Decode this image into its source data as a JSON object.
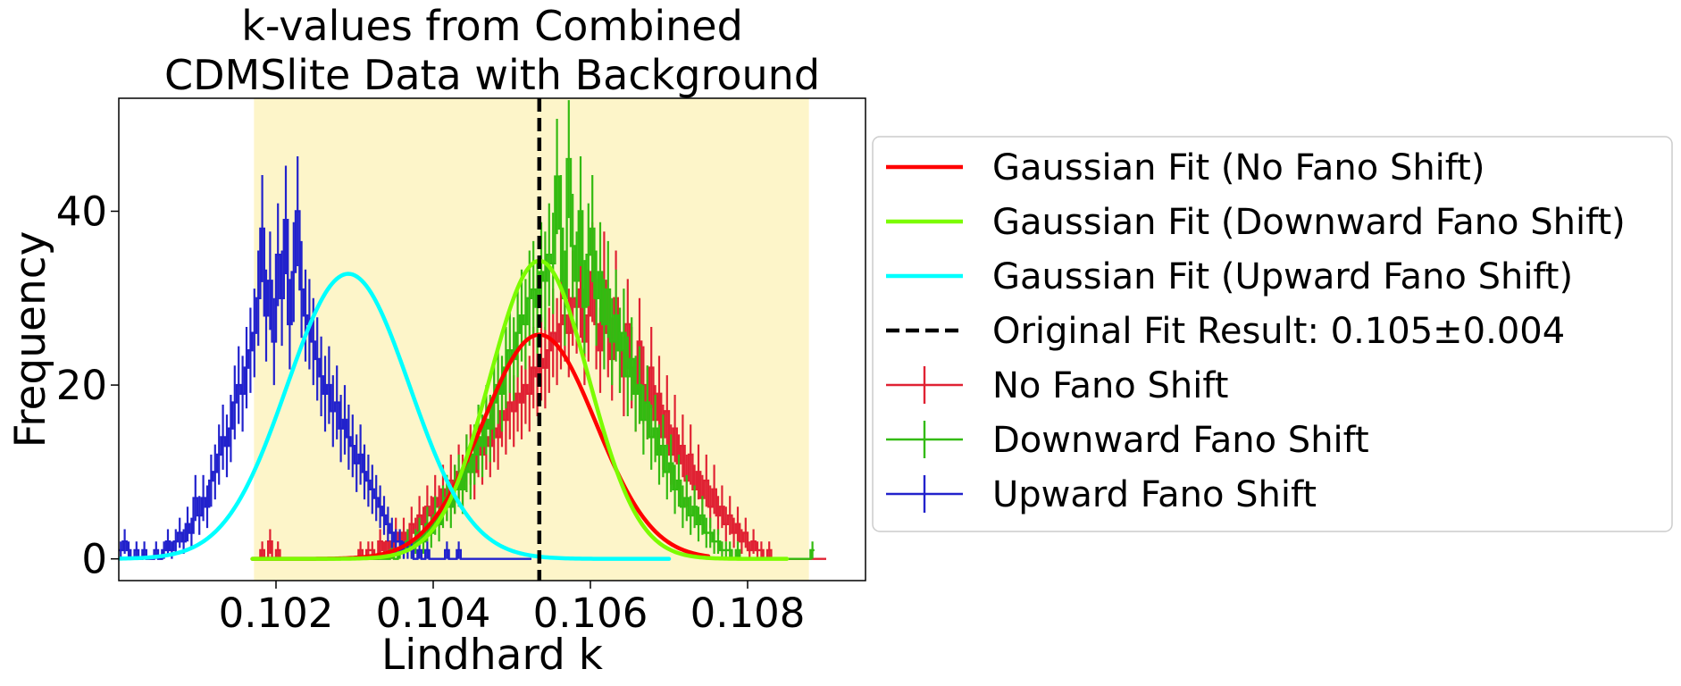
{
  "chart_data": {
    "type": "histogram",
    "title_lines": [
      "k-values from Combined",
      "CDMSlite Data with Background"
    ],
    "xlabel": "Lindhard k",
    "ylabel": "Frequency",
    "xlim": [
      0.1,
      0.1095
    ],
    "ylim": [
      -2.5,
      53
    ],
    "xticks": [
      0.102,
      0.104,
      0.106,
      0.108
    ],
    "xtick_labels": [
      "0.102",
      "0.104",
      "0.106",
      "0.108"
    ],
    "yticks": [
      0,
      20,
      40
    ],
    "ytick_labels": [
      "0",
      "20",
      "40"
    ],
    "grid": false,
    "shaded_band": {
      "x0": 0.10172,
      "x1": 0.10878,
      "color": "#fdf5c9"
    },
    "vline": {
      "x": 0.10535,
      "label": "Original Fit Result: 0.105±0.004",
      "style": "dashed",
      "color": "#000000"
    },
    "legend_placement": "right-outside",
    "legend": [
      {
        "label": "Gaussian Fit (No Fano Shift)",
        "type": "line",
        "color": "#ff0000"
      },
      {
        "label": "Gaussian Fit (Downward Fano Shift)",
        "type": "line",
        "color": "#7cfc00"
      },
      {
        "label": "Gaussian Fit (Upward Fano Shift)",
        "type": "line",
        "color": "#00ffff"
      },
      {
        "label": "Original Fit Result: 0.105±0.004",
        "type": "dashed",
        "color": "#000000"
      },
      {
        "label": "No Fano Shift",
        "type": "errorbar",
        "color": "#e02233"
      },
      {
        "label": "Downward Fano Shift",
        "type": "errorbar",
        "color": "#33bb11"
      },
      {
        "label": "Upward Fano Shift",
        "type": "errorbar",
        "color": "#2222cc"
      }
    ],
    "gaussian_fits": [
      {
        "name": "Gaussian Fit (No Fano Shift)",
        "color": "#ff0000",
        "amplitude": 25.8,
        "mean": 0.10535,
        "sigma": 0.00072,
        "x_range": [
          0.1017,
          0.1075
        ]
      },
      {
        "name": "Gaussian Fit (Downward Fano Shift)",
        "color": "#7cfc00",
        "amplitude": 34.3,
        "mean": 0.10535,
        "sigma": 0.00063,
        "x_range": [
          0.1017,
          0.1085
        ]
      },
      {
        "name": "Gaussian Fit (Upward Fano Shift)",
        "color": "#00ffff",
        "amplitude": 32.8,
        "mean": 0.10292,
        "sigma": 0.00078,
        "x_range": [
          0.1,
          0.107
        ]
      }
    ],
    "histograms": [
      {
        "name": "No Fano Shift",
        "color": "#e02233",
        "x_start": 0.1017,
        "bin_width": 5e-05,
        "counts": [
          0,
          0,
          1,
          0,
          2,
          0,
          1,
          0,
          0,
          0,
          0,
          0,
          0,
          0,
          0,
          0,
          0,
          0,
          0,
          0,
          0,
          0,
          0,
          0,
          0,
          0,
          0,
          1,
          0,
          1,
          1,
          0,
          2,
          1,
          2,
          1,
          3,
          2,
          3,
          2,
          4,
          3,
          5,
          4,
          6,
          5,
          7,
          6,
          8,
          7,
          9,
          8,
          10,
          9,
          11,
          12,
          10,
          13,
          12,
          14,
          13,
          15,
          14,
          17,
          16,
          18,
          17,
          19,
          18,
          20,
          19,
          22,
          21,
          23,
          22,
          24,
          26,
          25,
          27,
          28,
          26,
          30,
          29,
          31,
          25,
          28,
          33,
          27,
          24,
          32,
          26,
          23,
          30,
          24,
          21,
          27,
          22,
          19,
          25,
          20,
          18,
          22,
          16,
          19,
          14,
          17,
          12,
          15,
          11,
          13,
          9,
          12,
          8,
          10,
          7,
          9,
          6,
          8,
          5,
          6,
          4,
          5,
          3,
          4,
          2,
          3,
          1,
          2,
          1,
          1,
          0,
          1,
          0,
          0,
          0,
          0,
          0,
          0,
          0,
          0,
          0,
          0,
          0,
          0,
          0,
          0
        ]
      },
      {
        "name": "Downward Fano Shift",
        "color": "#33bb11",
        "x_start": 0.1017,
        "bin_width": 5e-05,
        "counts": [
          0,
          0,
          0,
          0,
          0,
          0,
          0,
          0,
          0,
          0,
          0,
          0,
          0,
          0,
          0,
          0,
          0,
          0,
          0,
          0,
          0,
          0,
          0,
          0,
          0,
          0,
          0,
          0,
          0,
          0,
          0,
          0,
          0,
          0,
          0,
          1,
          0,
          1,
          1,
          2,
          1,
          2,
          3,
          2,
          4,
          3,
          5,
          4,
          6,
          7,
          6,
          8,
          9,
          8,
          11,
          10,
          12,
          14,
          13,
          16,
          15,
          18,
          20,
          19,
          22,
          24,
          23,
          26,
          28,
          27,
          30,
          31,
          29,
          33,
          32,
          35,
          34,
          44,
          38,
          30,
          46,
          36,
          32,
          40,
          29,
          35,
          38,
          30,
          33,
          27,
          31,
          25,
          28,
          24,
          26,
          21,
          23,
          19,
          20,
          16,
          18,
          14,
          15,
          12,
          13,
          10,
          11,
          8,
          9,
          6,
          7,
          5,
          6,
          4,
          5,
          3,
          3,
          2,
          2,
          1,
          1,
          1,
          0,
          1,
          0,
          0,
          0,
          0,
          0,
          0,
          0,
          0,
          0,
          0,
          0,
          0,
          0,
          0,
          0,
          0,
          0,
          0,
          1
        ]
      },
      {
        "name": "Upward Fano Shift",
        "color": "#2222cc",
        "x_start": 0.1,
        "bin_width": 5e-05,
        "counts": [
          1,
          2,
          1,
          0,
          1,
          0,
          1,
          0,
          0,
          1,
          0,
          1,
          2,
          1,
          2,
          3,
          2,
          4,
          3,
          7,
          5,
          7,
          6,
          9,
          10,
          12,
          14,
          13,
          15,
          18,
          20,
          19,
          22,
          24,
          26,
          30,
          38,
          28,
          32,
          25,
          35,
          30,
          39,
          27,
          33,
          40,
          31,
          28,
          27,
          25,
          23,
          21,
          19,
          20,
          17,
          18,
          15,
          16,
          14,
          13,
          11,
          12,
          10,
          9,
          8,
          7,
          6,
          5,
          4,
          3,
          2,
          2,
          1,
          1,
          1,
          0,
          1,
          0,
          1,
          0,
          0,
          0,
          0,
          1,
          0,
          0,
          1,
          0,
          0,
          0,
          0,
          0,
          0,
          0,
          0,
          0,
          0,
          0,
          0,
          0,
          0,
          0,
          0,
          0,
          0
        ]
      }
    ]
  }
}
